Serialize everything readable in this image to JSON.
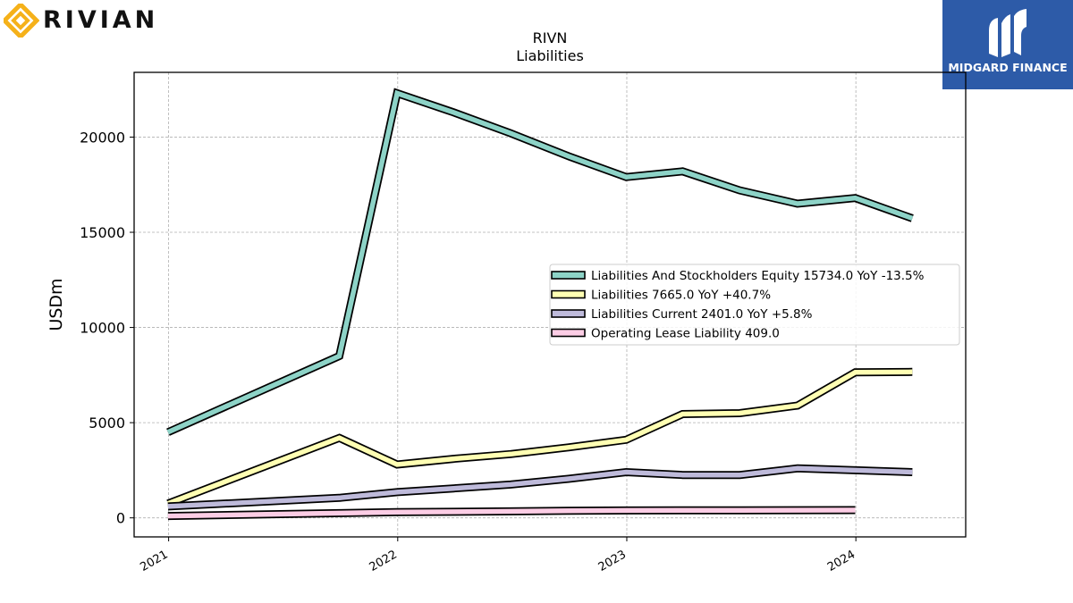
{
  "brand": {
    "name": "RIVIAN",
    "color": "#f5b11a"
  },
  "partner": {
    "name": "MIDGARD FINANCE",
    "bg_color": "#2d5ba8",
    "text_color": "#ffffff"
  },
  "chart_data": {
    "type": "line",
    "title": "RIVN",
    "subtitle": "Liabilities",
    "xlabel": "",
    "ylabel": "USDm",
    "x_ticks": [
      "2021",
      "2022",
      "2023",
      "2024"
    ],
    "x_tick_dates": [
      "2021-01-01",
      "2022-01-01",
      "2023-01-01",
      "2024-01-01"
    ],
    "xlim": [
      "2020-11-07",
      "2024-06-24"
    ],
    "y_ticks": [
      0,
      5000,
      10000,
      15000,
      20000
    ],
    "ylim": [
      -1000,
      23400
    ],
    "grid": true,
    "legend_position": "center-right",
    "series": [
      {
        "name": "Liabilities And Stockholders Equity  15734.0 YoY -13.5%",
        "color": "#8dd3c7",
        "x": [
          "2020-12-31",
          "2021-09-30",
          "2021-12-31",
          "2022-03-31",
          "2022-06-30",
          "2022-09-30",
          "2022-12-31",
          "2023-03-31",
          "2023-06-30",
          "2023-09-30",
          "2023-12-31",
          "2024-03-31"
        ],
        "values": [
          4500,
          8500,
          22300,
          21300,
          20200,
          19000,
          17900,
          18200,
          17200,
          16500,
          16800,
          15734
        ]
      },
      {
        "name": "Liabilities  7665.0 YoY +40.7%",
        "color": "#ffffb3",
        "x": [
          "2020-12-31",
          "2021-09-30",
          "2021-12-31",
          "2022-03-31",
          "2022-06-30",
          "2022-09-30",
          "2022-12-31",
          "2023-03-31",
          "2023-06-30",
          "2023-09-30",
          "2023-12-31",
          "2024-03-31"
        ],
        "values": [
          750,
          4200,
          2800,
          3100,
          3350,
          3700,
          4100,
          5450,
          5500,
          5900,
          7650,
          7665
        ]
      },
      {
        "name": "Liabilities Current  2401.0 YoY +5.8%",
        "color": "#bebada",
        "x": [
          "2020-12-31",
          "2021-09-30",
          "2021-12-31",
          "2022-03-31",
          "2022-06-30",
          "2022-09-30",
          "2022-12-31",
          "2023-03-31",
          "2023-06-30",
          "2023-09-30",
          "2023-12-31",
          "2024-03-31"
        ],
        "values": [
          600,
          1050,
          1350,
          1550,
          1750,
          2050,
          2400,
          2250,
          2250,
          2600,
          2500,
          2401
        ]
      },
      {
        "name": "Operating Lease Liability  409.0",
        "color": "#fccde5",
        "x": [
          "2020-12-31",
          "2021-09-30",
          "2021-12-31",
          "2022-03-31",
          "2022-06-30",
          "2022-09-30",
          "2022-12-31",
          "2023-03-31",
          "2023-06-30",
          "2023-09-30",
          "2023-12-31"
        ],
        "values": [
          100,
          250,
          300,
          320,
          340,
          370,
          390,
          400,
          400,
          405,
          409
        ]
      }
    ]
  }
}
